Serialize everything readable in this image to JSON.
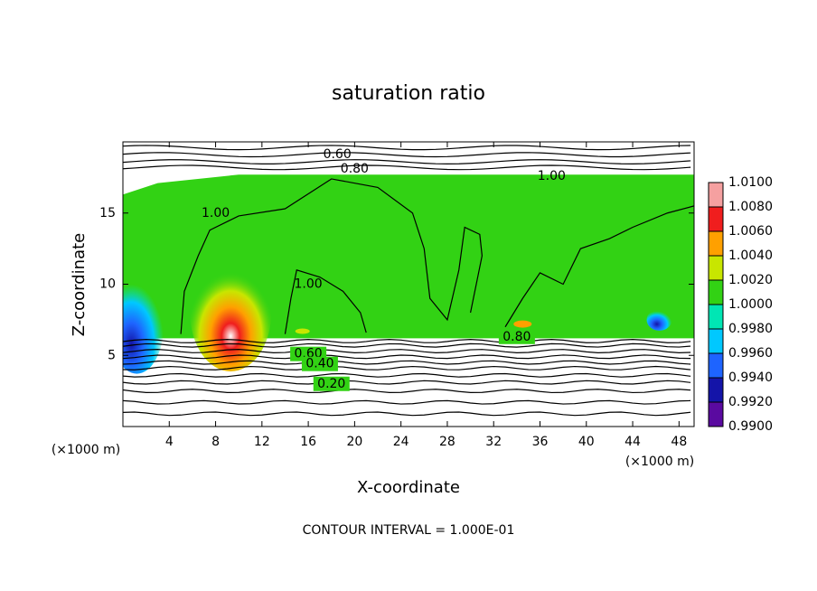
{
  "chart_data": {
    "type": "contour",
    "title": "saturation ratio",
    "x_label": "X-coordinate",
    "y_label": "Z-coordinate",
    "x_unit_label": "(×1000 m)",
    "y_unit_label": "(×1000 m)",
    "xlim": [
      0,
      49.3
    ],
    "xticks": [
      4,
      8,
      12,
      16,
      20,
      24,
      28,
      32,
      36,
      40,
      44,
      48
    ],
    "ylim": [
      0,
      20
    ],
    "yticks": [
      5,
      10,
      15
    ],
    "colorbar": {
      "ticks": [
        {
          "value": 0.99,
          "label": "0.9900"
        },
        {
          "value": 0.992,
          "label": "0.9920"
        },
        {
          "value": 0.994,
          "label": "0.9940"
        },
        {
          "value": 0.996,
          "label": "0.9960"
        },
        {
          "value": 0.998,
          "label": "0.9980"
        },
        {
          "value": 1.0,
          "label": "1.0000"
        },
        {
          "value": 1.002,
          "label": "1.0020"
        },
        {
          "value": 1.004,
          "label": "1.0040"
        },
        {
          "value": 1.006,
          "label": "1.0060"
        },
        {
          "value": 1.008,
          "label": "1.0080"
        },
        {
          "value": 1.01,
          "label": "1.0100"
        }
      ],
      "colors": [
        "#5a0aa0",
        "#1414a8",
        "#1e64ff",
        "#00c8ff",
        "#00e6b4",
        "#32d214",
        "#c8e600",
        "#ffa000",
        "#f01e1e",
        "#f5a0a0"
      ]
    },
    "contour_labels": [
      "0.60",
      "0.80",
      "1.00",
      "1.00",
      "1.00",
      "0.80",
      "0.60",
      "0.40",
      "0.20"
    ],
    "footnote": "CONTOUR INTERVAL = 1.000E-01"
  }
}
